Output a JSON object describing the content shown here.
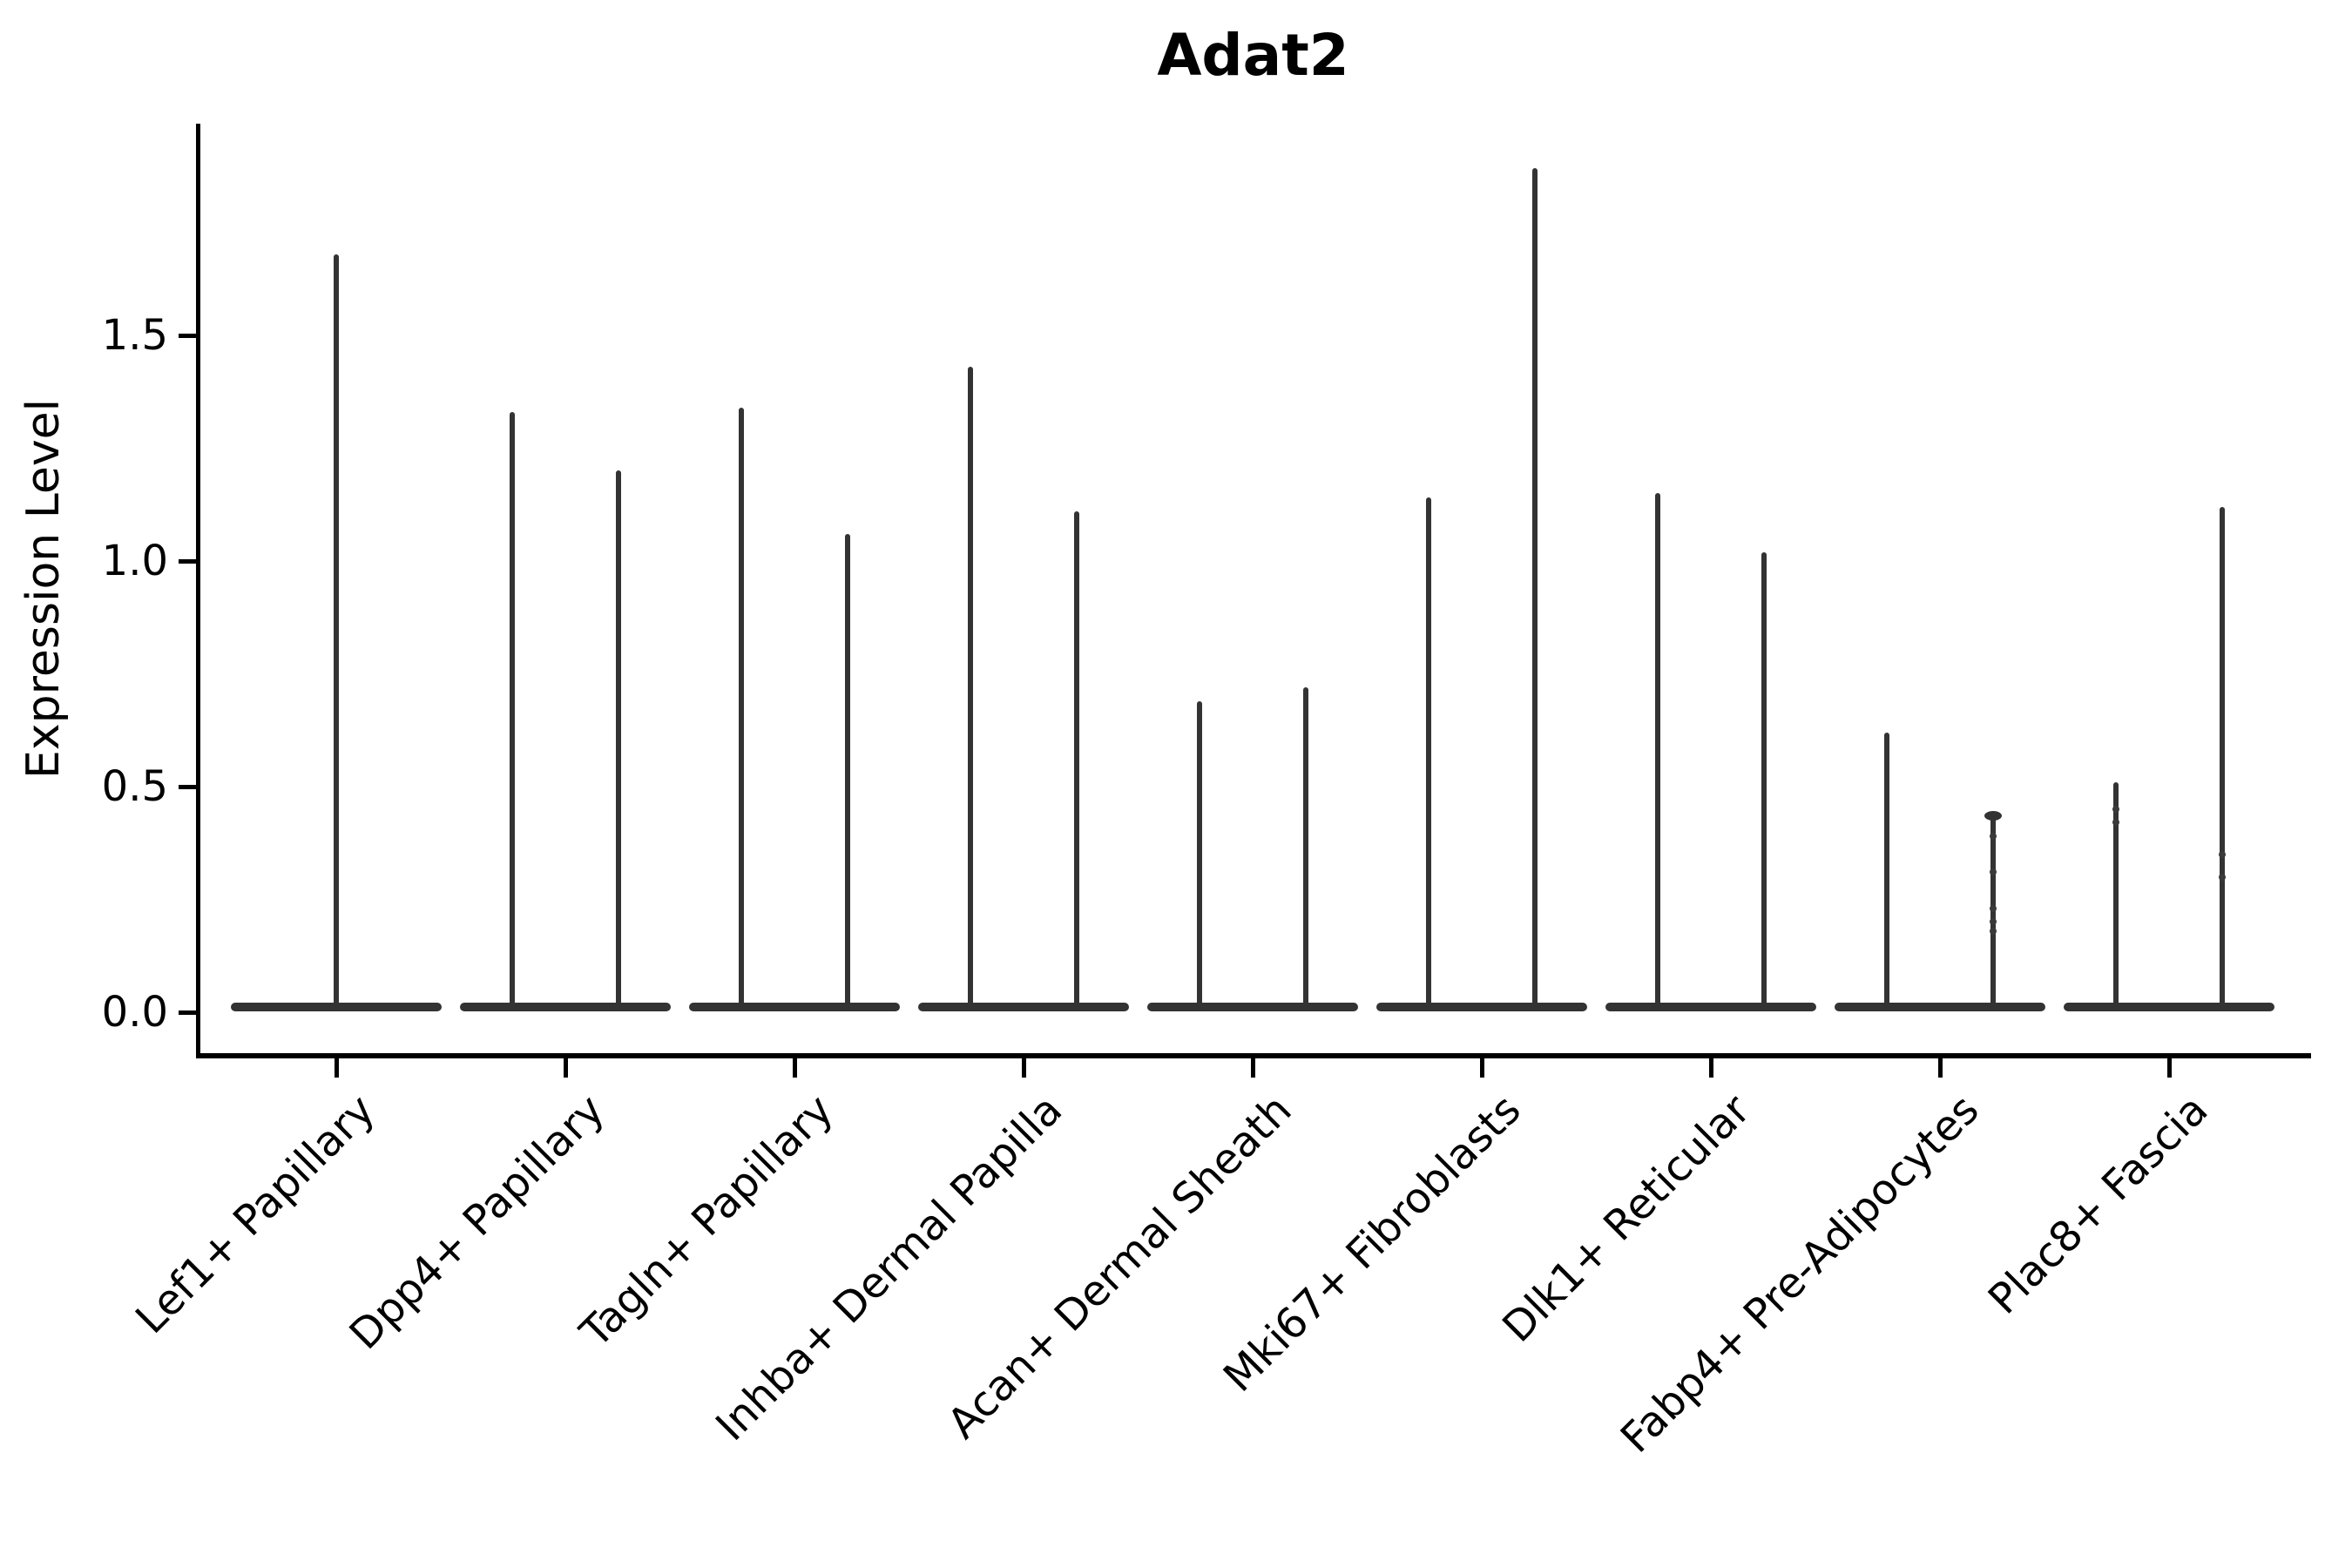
{
  "title": "Adat2",
  "axes": {
    "ylabel": "Expression Level",
    "y_tick_labels": [
      "0.0",
      "0.5",
      "1.0",
      "1.5"
    ]
  },
  "chart_data": {
    "type": "violin",
    "title": "Adat2",
    "xlabel": "",
    "ylabel": "Expression Level",
    "ylim": [
      -0.09,
      1.97
    ],
    "y_ticks": [
      0.0,
      0.5,
      1.0,
      1.5
    ],
    "grid": false,
    "legend": "none",
    "style": "narrow spike violins: wide flat base at 0 expression, thin vertical spike up to the max expression of each violin",
    "categories": [
      "Lef1+ Papillary",
      "Dpp4+ Papillary",
      "Tagln+ Papillary",
      "Inhba+ Dermal Papilla",
      "Acan+ Dermal Sheath",
      "Mki67+ Fibroblasts",
      "Dlk1+ Reticular",
      "Fabp4+ Pre-Adipocytes",
      "Plac8+ Fascia"
    ],
    "groups": [
      {
        "label": "Lef1+ Papillary",
        "violin_maxima": [
          1.68
        ],
        "caps": [
          false
        ],
        "points": [
          []
        ]
      },
      {
        "label": "Dpp4+ Papillary",
        "violin_maxima": [
          1.33,
          1.2
        ],
        "caps": [
          false,
          false
        ],
        "points": [
          [],
          []
        ]
      },
      {
        "label": "Tagln+ Papillary",
        "violin_maxima": [
          1.34,
          1.06
        ],
        "caps": [
          false,
          false
        ],
        "points": [
          [],
          []
        ]
      },
      {
        "label": "Inhba+ Dermal Papilla",
        "violin_maxima": [
          1.43,
          1.11
        ],
        "caps": [
          false,
          false
        ],
        "points": [
          [],
          []
        ]
      },
      {
        "label": "Acan+ Dermal Sheath",
        "violin_maxima": [
          0.69,
          0.72
        ],
        "caps": [
          false,
          false
        ],
        "points": [
          [],
          []
        ]
      },
      {
        "label": "Mki67+ Fibroblasts",
        "violin_maxima": [
          1.14,
          1.87
        ],
        "caps": [
          false,
          false
        ],
        "points": [
          [],
          []
        ]
      },
      {
        "label": "Dlk1+ Reticular",
        "violin_maxima": [
          1.15,
          1.02
        ],
        "caps": [
          false,
          false
        ],
        "points": [
          [],
          []
        ]
      },
      {
        "label": "Fabp4+ Pre-Adipocytes",
        "violin_maxima": [
          0.62,
          0.44
        ],
        "caps": [
          false,
          true
        ],
        "points": [
          [],
          [
            0.39,
            0.31,
            0.23,
            0.2,
            0.18
          ]
        ]
      },
      {
        "label": "Plac8+ Fascia",
        "violin_maxima": [
          0.51,
          1.12
        ],
        "caps": [
          false,
          false
        ],
        "points": [
          [
            0.45,
            0.42
          ],
          [
            0.35,
            0.3
          ]
        ]
      }
    ],
    "baseline_value": 0.0,
    "colors": {
      "violin": "#333333",
      "axis": "#000000",
      "text": "#000000",
      "background": "#ffffff"
    }
  }
}
